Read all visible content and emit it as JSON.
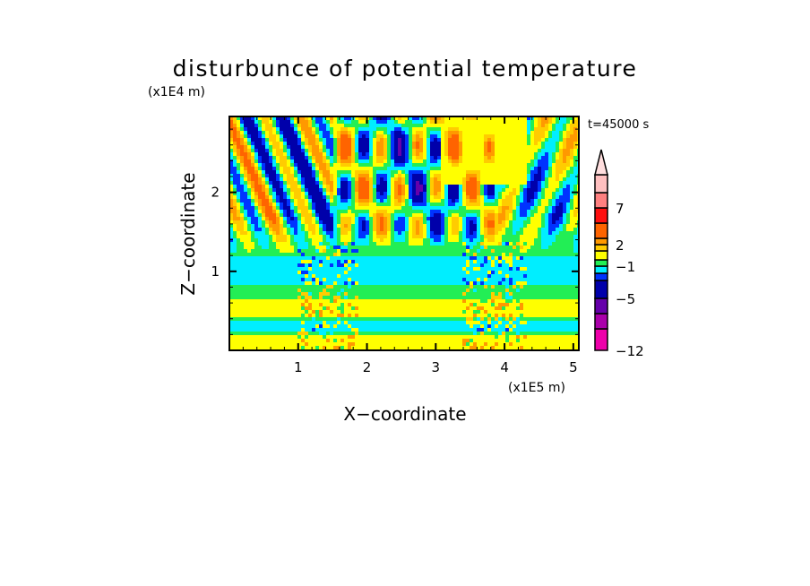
{
  "chart_data": {
    "type": "heatmap",
    "title": "disturbunce of potential temperature",
    "xlabel": "X−coordinate",
    "ylabel": "Z−coordinate",
    "x_unit": "(x1E5 m)",
    "y_unit": "(x1E4 m)",
    "time_label": "t=45000 s",
    "xlim": [
      0,
      5.08
    ],
    "ylim": [
      0,
      2.96
    ],
    "x_ticks": [
      {
        "v": 1,
        "label": "1"
      },
      {
        "v": 2,
        "label": "2"
      },
      {
        "v": 3,
        "label": "3"
      },
      {
        "v": 4,
        "label": "4"
      },
      {
        "v": 5,
        "label": "5"
      }
    ],
    "y_ticks": [
      {
        "v": 1,
        "label": "1"
      },
      {
        "v": 2,
        "label": "2"
      }
    ],
    "minor_tick_step": 0.2,
    "levels": [
      -12,
      -9,
      -7,
      -5,
      -3,
      -2,
      -1,
      0,
      1,
      2,
      3,
      5,
      7,
      9,
      12
    ],
    "colors": [
      "#ee00aa",
      "#aa00aa",
      "#6600aa",
      "#0000aa",
      "#0033ff",
      "#00eeff",
      "#22ee55",
      "#ffff00",
      "#ffcc00",
      "#ff9900",
      "#ff6400",
      "#ff1010",
      "#ff8080",
      "#ffc0c0"
    ],
    "over_color": "#ffdede",
    "colorbar_labels": [
      {
        "v": 7,
        "label": "7"
      },
      {
        "v": 2,
        "label": "2"
      },
      {
        "v": -1,
        "label": "−1"
      },
      {
        "v": -5,
        "label": "−5"
      },
      {
        "v": -12,
        "label": "−12"
      }
    ],
    "field_model": {
      "wave_sources_x": [
        1.45,
        3.85
      ],
      "background_bands": [
        {
          "z_top": 0.2,
          "value": 0.5
        },
        {
          "z_top": 0.25,
          "value": -0.5
        },
        {
          "z_top": 0.38,
          "value": -1.5
        },
        {
          "z_top": 0.44,
          "value": -0.5
        },
        {
          "z_top": 0.63,
          "value": 0.5
        },
        {
          "z_top": 0.85,
          "value": -0.5
        },
        {
          "z_top": 1.17,
          "value": -1.5
        },
        {
          "z_top": 99,
          "value": -0.5
        }
      ],
      "wave_amplitude": 3.2
    }
  }
}
